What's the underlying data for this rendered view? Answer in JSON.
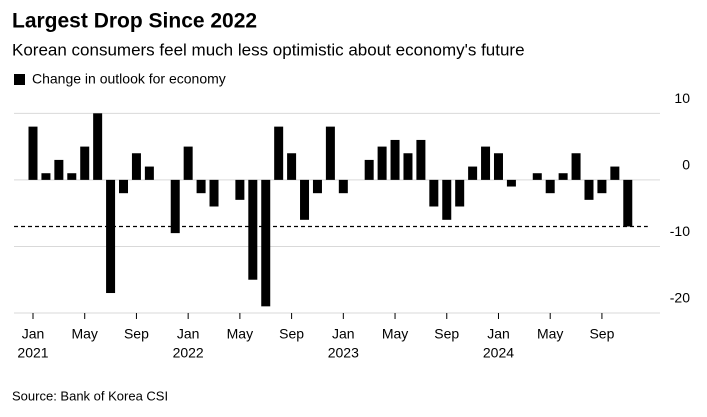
{
  "chart_data": {
    "type": "bar",
    "title": "Largest Drop Since 2022",
    "subtitle": "Korean consumers feel much less optimistic about economy's future",
    "source": "Source: Bank of Korea CSI",
    "categories": [
      "Jan",
      null,
      null,
      null,
      "May",
      null,
      null,
      null,
      "Sep",
      null,
      null,
      null,
      "Jan",
      null,
      null,
      null,
      "May",
      null,
      null,
      null,
      "Sep",
      null,
      null,
      null,
      "Jan",
      null,
      null,
      null,
      "May",
      null,
      null,
      null,
      "Sep",
      null,
      null,
      null,
      "Jan",
      null,
      null,
      null,
      "May",
      null,
      null,
      null,
      "Sep",
      null,
      null
    ],
    "years": [
      "2021",
      null,
      null,
      null,
      null,
      null,
      null,
      null,
      null,
      null,
      null,
      null,
      "2022",
      null,
      null,
      null,
      null,
      null,
      null,
      null,
      null,
      null,
      null,
      null,
      "2023",
      null,
      null,
      null,
      null,
      null,
      null,
      null,
      null,
      null,
      null,
      null,
      "2024",
      null,
      null,
      null,
      null,
      null,
      null,
      null,
      null,
      null,
      null
    ],
    "series": [
      {
        "name": "Change in outlook for economy",
        "color": "#000000",
        "values": [
          8,
          1,
          3,
          1,
          5,
          10,
          -17,
          -2,
          4,
          2,
          0,
          -8,
          5,
          -2,
          -4,
          0,
          -3,
          -15,
          -19,
          8,
          4,
          -6,
          -2,
          8,
          -2,
          0,
          3,
          5,
          6,
          4,
          6,
          -4,
          -6,
          -4,
          2,
          5,
          4,
          -1,
          0,
          1,
          -2,
          1,
          4,
          -3,
          -2,
          2,
          -7
        ]
      }
    ],
    "ylim": [
      -20,
      12
    ],
    "yticks": [
      10,
      0,
      -10,
      -20
    ],
    "grid": true,
    "reference_line": "last"
  }
}
